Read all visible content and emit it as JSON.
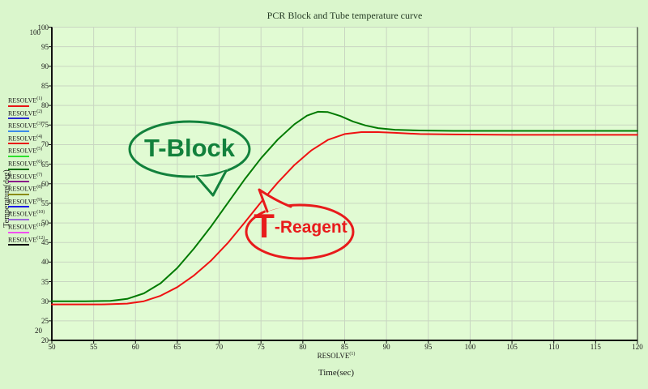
{
  "title": "PCR Block and Tube temperature curve",
  "axes": {
    "x": {
      "series_label": "RESOLVE",
      "series_sup": "(1)",
      "title": "Time(sec)",
      "min": 50,
      "max": 120,
      "step": 5,
      "ticks": [
        50,
        55,
        60,
        65,
        70,
        75,
        80,
        85,
        90,
        95,
        100,
        105,
        110,
        115,
        120
      ]
    },
    "y": {
      "title": "Temperature(deg)",
      "min": 20,
      "max": 100,
      "step": 5,
      "ticks": [
        100,
        95,
        90,
        85,
        80,
        75,
        70,
        65,
        60,
        55,
        50,
        45,
        40,
        35,
        30,
        25,
        20
      ],
      "outer_max": "100",
      "outer_min": "20"
    }
  },
  "legend": {
    "items": [
      {
        "label": "RESOLVE",
        "sup": "(1)",
        "color": "#e81414"
      },
      {
        "label": "RESOLVE",
        "sup": "(2)",
        "color": "#2a2ad0"
      },
      {
        "label": "RESOLVE",
        "sup": "(3)",
        "color": "#3c8ce8"
      },
      {
        "label": "RESOLVE",
        "sup": "(4)",
        "color": "#e81414"
      },
      {
        "label": "RESOLVE",
        "sup": "(5)",
        "color": "#2ee02e"
      },
      {
        "label": "RESOLVE",
        "sup": "(6)",
        "color": "#127012"
      },
      {
        "label": "RESOLVE",
        "sup": "(7)",
        "color": "#8a1a8a"
      },
      {
        "label": "RESOLVE",
        "sup": "(8)",
        "color": "#8a8a10"
      },
      {
        "label": "RESOLVE",
        "sup": "(9)",
        "color": "#1a1ae8"
      },
      {
        "label": "RESOLVE",
        "sup": "(10)",
        "color": "#9a6ad8"
      },
      {
        "label": "RESOLVE",
        "sup": "(11)",
        "color": "#f050f0"
      },
      {
        "label": "RESOLVE",
        "sup": "(12)",
        "color": "#101010"
      }
    ]
  },
  "annotations": {
    "block": {
      "text": "T-Block",
      "color": "#12813c"
    },
    "reagent": {
      "big": "T",
      "rest": "-Reagent",
      "color": "#e81b1b"
    }
  },
  "colors": {
    "background": "#daf6cc",
    "plot_background": "#e1fbd3",
    "grid": "#c9d6c2",
    "axis": "#111111",
    "t_block_curve": "#007a00",
    "t_reagent_curve": "#ef1212"
  },
  "chart_data": {
    "type": "line",
    "title": "PCR Block and Tube temperature curve",
    "xlabel": "Time(sec)",
    "ylabel": "Temperature(deg)",
    "xlim": [
      50,
      120
    ],
    "ylim": [
      20,
      100
    ],
    "grid": true,
    "legend_position": "left",
    "series": [
      {
        "name": "T-Block",
        "color": "#007a00",
        "points": [
          [
            50,
            30
          ],
          [
            54,
            30
          ],
          [
            57,
            30.1
          ],
          [
            59,
            30.6
          ],
          [
            61,
            32
          ],
          [
            63,
            34.6
          ],
          [
            65,
            38.5
          ],
          [
            67,
            43.5
          ],
          [
            69,
            49
          ],
          [
            71,
            55
          ],
          [
            73,
            61
          ],
          [
            75,
            66.5
          ],
          [
            77,
            71.3
          ],
          [
            79,
            75.2
          ],
          [
            80.5,
            77.4
          ],
          [
            81.8,
            78.4
          ],
          [
            83,
            78.3
          ],
          [
            84.5,
            77.3
          ],
          [
            86,
            75.9
          ],
          [
            87.5,
            74.9
          ],
          [
            89,
            74.2
          ],
          [
            91,
            73.8
          ],
          [
            94,
            73.6
          ],
          [
            98,
            73.5
          ],
          [
            105,
            73.5
          ],
          [
            120,
            73.5
          ]
        ]
      },
      {
        "name": "T-Reagent",
        "color": "#ef1212",
        "points": [
          [
            50,
            29.2
          ],
          [
            56,
            29.2
          ],
          [
            59,
            29.4
          ],
          [
            61,
            30
          ],
          [
            63,
            31.4
          ],
          [
            65,
            33.6
          ],
          [
            67,
            36.6
          ],
          [
            69,
            40.3
          ],
          [
            71,
            44.8
          ],
          [
            73,
            50
          ],
          [
            75,
            55.3
          ],
          [
            77,
            60.3
          ],
          [
            79,
            64.8
          ],
          [
            81,
            68.5
          ],
          [
            83,
            71.2
          ],
          [
            85,
            72.7
          ],
          [
            87,
            73.2
          ],
          [
            89,
            73.2
          ],
          [
            91,
            73
          ],
          [
            94,
            72.7
          ],
          [
            98,
            72.6
          ],
          [
            105,
            72.5
          ],
          [
            120,
            72.5
          ]
        ]
      }
    ]
  }
}
